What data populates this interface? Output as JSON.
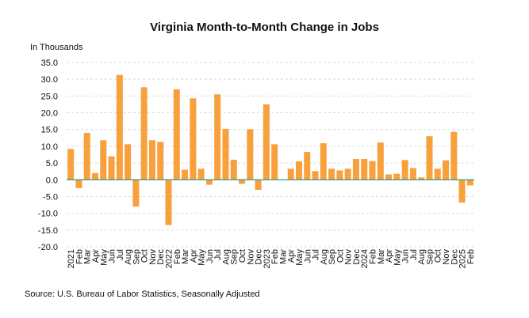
{
  "chart_data": {
    "type": "bar",
    "title": "Virginia Month-to-Month Change in Jobs",
    "ylabel": "In Thousands",
    "source": "Source: U.S. Bureau of Labor Statistics, Seasonally Adjusted",
    "ylim": [
      -20,
      35
    ],
    "yticks": [
      "35.0",
      "30.0",
      "25.0",
      "20.0",
      "15.0",
      "10.0",
      "5.0",
      "0.0",
      "-5.0",
      "-10.0",
      "-15.0",
      "-20.0"
    ],
    "grid": true,
    "bar_color": "#f7a03c",
    "zero_line_color": "#2f9e8f",
    "categories": [
      "2021",
      "Feb",
      "Mar",
      "Apr",
      "May",
      "Jun",
      "Jul",
      "Aug",
      "Sep",
      "Oct",
      "Nov",
      "Dec",
      "2022",
      "Feb",
      "Mar",
      "Apr",
      "May",
      "Jun",
      "Jul",
      "Aug",
      "Sep",
      "Oct",
      "Nov",
      "Dec",
      "2023",
      "Feb",
      "Mar",
      "Apr",
      "May",
      "Jun",
      "Jul",
      "Aug",
      "Sep",
      "Oct",
      "Nov",
      "Dec",
      "2024",
      "Feb",
      "Mar",
      "Apr",
      "May",
      "Jun",
      "Jul",
      "Aug",
      "Sep",
      "Oct",
      "Nov",
      "Dec",
      "2025",
      "Feb"
    ],
    "values": [
      9.2,
      -2.5,
      14.0,
      2.0,
      11.8,
      7.0,
      31.3,
      10.6,
      -8.0,
      27.6,
      11.8,
      11.3,
      -13.5,
      27.0,
      3.0,
      24.3,
      3.3,
      -1.5,
      25.5,
      15.2,
      6.0,
      -1.2,
      15.1,
      -3.0,
      22.5,
      10.6,
      0.0,
      3.3,
      5.5,
      8.3,
      2.6,
      10.9,
      3.3,
      2.8,
      3.3,
      6.2,
      6.2,
      5.6,
      11.1,
      1.6,
      1.8,
      5.9,
      3.5,
      0.7,
      13.0,
      3.3,
      5.8,
      14.3,
      -6.8,
      -1.7
    ]
  }
}
